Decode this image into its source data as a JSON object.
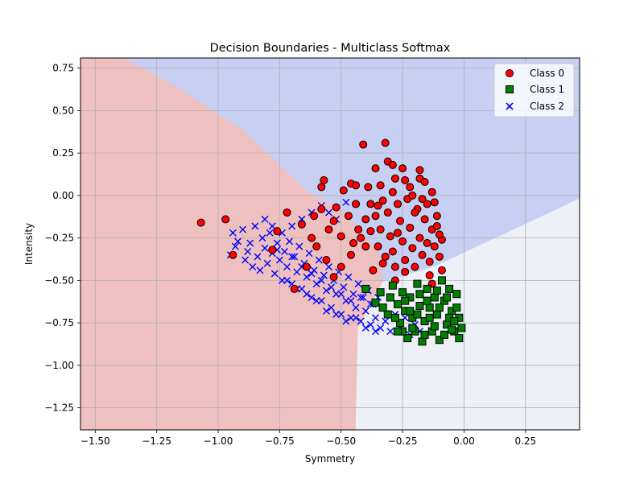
{
  "chart_data": {
    "type": "scatter",
    "title": "Decision Boundaries - Multiclass Softmax",
    "xlabel": "Symmetry",
    "ylabel": "Intensity",
    "xlim": [
      -1.56,
      0.47
    ],
    "ylim": [
      -1.38,
      0.81
    ],
    "x_ticks": [
      -1.5,
      -1.25,
      -1.0,
      -0.75,
      -0.5,
      -0.25,
      0.0,
      0.25
    ],
    "x_tick_labels": [
      "−1.50",
      "−1.25",
      "−1.00",
      "−0.75",
      "−0.50",
      "−0.25",
      "0.00",
      "0.25"
    ],
    "y_ticks": [
      0.75,
      0.5,
      0.25,
      0.0,
      -0.25,
      -0.5,
      -0.75,
      -1.0,
      -1.25
    ],
    "y_tick_labels": [
      "0.75",
      "0.50",
      "0.25",
      "0.00",
      "−0.25",
      "−0.50",
      "−0.75",
      "−1.00",
      "−1.25"
    ],
    "grid": true,
    "legend_position": "top-right",
    "decision_regions": [
      {
        "class": "Class 0",
        "color": "#eec1c0",
        "polygon": [
          [
            -1.56,
            0.81
          ],
          [
            -1.38,
            0.81
          ],
          [
            -1.2,
            0.67
          ],
          [
            -0.9,
            0.39
          ],
          [
            -0.63,
            0.02
          ],
          [
            -0.48,
            -0.1
          ],
          [
            -0.34,
            -0.35
          ],
          [
            -0.33,
            -0.51
          ],
          [
            -0.43,
            -0.78
          ],
          [
            -0.44,
            -1.38
          ],
          [
            -1.56,
            -1.38
          ]
        ]
      },
      {
        "class": "Class 2",
        "color": "#c7cff2",
        "polygon": [
          [
            -1.38,
            0.81
          ],
          [
            0.47,
            0.81
          ],
          [
            0.47,
            -0.02
          ],
          [
            -0.12,
            -0.42
          ],
          [
            -0.33,
            -0.51
          ],
          [
            -0.34,
            -0.35
          ],
          [
            -0.48,
            -0.1
          ],
          [
            -0.63,
            0.02
          ],
          [
            -0.9,
            0.39
          ],
          [
            -1.2,
            0.67
          ]
        ]
      },
      {
        "class": "Class 1",
        "color": "#eef0f8",
        "polygon": [
          [
            0.47,
            -0.02
          ],
          [
            0.47,
            -1.38
          ],
          [
            -0.44,
            -1.38
          ],
          [
            -0.43,
            -0.78
          ],
          [
            -0.33,
            -0.51
          ],
          [
            -0.12,
            -0.42
          ]
        ]
      }
    ],
    "series": [
      {
        "name": "Class 0",
        "marker": "circle",
        "color": "#ff0000",
        "edge_color": "#000000",
        "points": [
          [
            -1.07,
            -0.16
          ],
          [
            -0.97,
            -0.14
          ],
          [
            -0.94,
            -0.35
          ],
          [
            -0.72,
            -0.1
          ],
          [
            -0.69,
            -0.55
          ],
          [
            -0.62,
            -0.25
          ],
          [
            -0.58,
            0.05
          ],
          [
            -0.57,
            0.09
          ],
          [
            -0.53,
            -0.48
          ],
          [
            -0.49,
            0.03
          ],
          [
            -0.46,
            0.07
          ],
          [
            -0.44,
            0.06
          ],
          [
            -0.41,
            0.3
          ],
          [
            -0.39,
            0.05
          ],
          [
            -0.36,
            0.16
          ],
          [
            -0.35,
            -0.06
          ],
          [
            -0.34,
            0.06
          ],
          [
            -0.32,
            0.31
          ],
          [
            -0.31,
            0.2
          ],
          [
            -0.29,
            0.18
          ],
          [
            -0.28,
            0.1
          ],
          [
            -0.25,
            0.16
          ],
          [
            -0.24,
            0.09
          ],
          [
            -0.22,
            0.05
          ],
          [
            -0.18,
            0.15
          ],
          [
            -0.18,
            0.1
          ],
          [
            -0.16,
            0.08
          ],
          [
            -0.13,
            0.02
          ],
          [
            -0.12,
            -0.04
          ],
          [
            -0.11,
            -0.12
          ],
          [
            -0.09,
            -0.26
          ],
          [
            -0.1,
            -0.23
          ],
          [
            -0.1,
            -0.36
          ],
          [
            -0.09,
            -0.44
          ],
          [
            -0.14,
            -0.47
          ],
          [
            -0.13,
            -0.52
          ],
          [
            -0.24,
            -0.45
          ],
          [
            -0.28,
            -0.5
          ],
          [
            -0.37,
            -0.44
          ],
          [
            -0.46,
            -0.35
          ],
          [
            -0.5,
            -0.24
          ],
          [
            -0.53,
            -0.15
          ],
          [
            -0.58,
            -0.08
          ],
          [
            -0.61,
            -0.12
          ],
          [
            -0.66,
            -0.17
          ],
          [
            -0.76,
            -0.21
          ],
          [
            -0.78,
            -0.32
          ],
          [
            -0.52,
            -0.07
          ],
          [
            -0.44,
            -0.05
          ],
          [
            -0.47,
            -0.12
          ],
          [
            -0.43,
            -0.2
          ],
          [
            -0.4,
            -0.14
          ],
          [
            -0.38,
            -0.05
          ],
          [
            -0.36,
            -0.12
          ],
          [
            -0.34,
            -0.2
          ],
          [
            -0.33,
            -0.03
          ],
          [
            -0.31,
            -0.1
          ],
          [
            -0.3,
            -0.24
          ],
          [
            -0.29,
            -0.33
          ],
          [
            -0.27,
            -0.05
          ],
          [
            -0.26,
            -0.15
          ],
          [
            -0.25,
            -0.27
          ],
          [
            -0.24,
            -0.38
          ],
          [
            -0.23,
            -0.02
          ],
          [
            -0.22,
            -0.19
          ],
          [
            -0.21,
            -0.31
          ],
          [
            -0.2,
            -0.42
          ],
          [
            -0.19,
            -0.08
          ],
          [
            -0.18,
            -0.25
          ],
          [
            -0.17,
            -0.35
          ],
          [
            -0.16,
            -0.14
          ],
          [
            -0.15,
            -0.28
          ],
          [
            -0.14,
            -0.39
          ],
          [
            -0.13,
            -0.2
          ],
          [
            -0.12,
            -0.3
          ],
          [
            -0.35,
            -0.3
          ],
          [
            -0.33,
            -0.4
          ],
          [
            -0.4,
            -0.3
          ],
          [
            -0.42,
            -0.25
          ],
          [
            -0.38,
            -0.21
          ],
          [
            -0.28,
            -0.42
          ],
          [
            -0.32,
            -0.36
          ],
          [
            -0.27,
            -0.22
          ],
          [
            -0.2,
            -0.1
          ],
          [
            -0.15,
            -0.05
          ],
          [
            -0.29,
            0.02
          ],
          [
            -0.21,
            0.0
          ],
          [
            -0.17,
            -0.02
          ],
          [
            -0.11,
            -0.18
          ],
          [
            -0.45,
            -0.28
          ],
          [
            -0.55,
            -0.2
          ],
          [
            -0.6,
            -0.3
          ],
          [
            -0.64,
            -0.42
          ],
          [
            -0.56,
            -0.38
          ],
          [
            -0.5,
            -0.42
          ]
        ]
      },
      {
        "name": "Class 1",
        "marker": "square",
        "color": "#008000",
        "edge_color": "#000000",
        "points": [
          [
            -0.4,
            -0.55
          ],
          [
            -0.36,
            -0.63
          ],
          [
            -0.34,
            -0.57
          ],
          [
            -0.31,
            -0.7
          ],
          [
            -0.29,
            -0.53
          ],
          [
            -0.27,
            -0.64
          ],
          [
            -0.26,
            -0.75
          ],
          [
            -0.25,
            -0.57
          ],
          [
            -0.24,
            -0.68
          ],
          [
            -0.23,
            -0.84
          ],
          [
            -0.22,
            -0.6
          ],
          [
            -0.21,
            -0.72
          ],
          [
            -0.2,
            -0.8
          ],
          [
            -0.19,
            -0.52
          ],
          [
            -0.18,
            -0.65
          ],
          [
            -0.17,
            -0.86
          ],
          [
            -0.16,
            -0.74
          ],
          [
            -0.15,
            -0.55
          ],
          [
            -0.14,
            -0.66
          ],
          [
            -0.13,
            -0.8
          ],
          [
            -0.12,
            -0.6
          ],
          [
            -0.11,
            -0.7
          ],
          [
            -0.1,
            -0.85
          ],
          [
            -0.09,
            -0.5
          ],
          [
            -0.08,
            -0.62
          ],
          [
            -0.07,
            -0.76
          ],
          [
            -0.06,
            -0.55
          ],
          [
            -0.05,
            -0.68
          ],
          [
            -0.04,
            -0.8
          ],
          [
            -0.03,
            -0.58
          ],
          [
            -0.02,
            -0.72
          ],
          [
            -0.01,
            -0.78
          ],
          [
            -0.02,
            -0.84
          ],
          [
            -0.05,
            -0.79
          ],
          [
            -0.08,
            -0.82
          ],
          [
            -0.12,
            -0.77
          ],
          [
            -0.16,
            -0.82
          ],
          [
            -0.21,
            -0.78
          ],
          [
            -0.25,
            -0.8
          ],
          [
            -0.3,
            -0.6
          ],
          [
            -0.33,
            -0.66
          ],
          [
            -0.28,
            -0.72
          ],
          [
            -0.22,
            -0.68
          ],
          [
            -0.18,
            -0.58
          ],
          [
            -0.14,
            -0.72
          ],
          [
            -0.1,
            -0.66
          ],
          [
            -0.06,
            -0.72
          ],
          [
            -0.03,
            -0.66
          ],
          [
            -0.07,
            -0.6
          ],
          [
            -0.11,
            -0.56
          ],
          [
            -0.15,
            -0.62
          ],
          [
            -0.19,
            -0.7
          ],
          [
            -0.24,
            -0.62
          ],
          [
            -0.27,
            -0.8
          ],
          [
            -0.04,
            -0.74
          ]
        ]
      },
      {
        "name": "Class 2",
        "marker": "x",
        "color": "#0000ff",
        "points": [
          [
            -0.95,
            -0.35
          ],
          [
            -0.94,
            -0.22
          ],
          [
            -0.93,
            -0.3
          ],
          [
            -0.92,
            -0.27
          ],
          [
            -0.9,
            -0.2
          ],
          [
            -0.89,
            -0.38
          ],
          [
            -0.88,
            -0.33
          ],
          [
            -0.87,
            -0.28
          ],
          [
            -0.86,
            -0.42
          ],
          [
            -0.85,
            -0.18
          ],
          [
            -0.84,
            -0.36
          ],
          [
            -0.83,
            -0.44
          ],
          [
            -0.82,
            -0.25
          ],
          [
            -0.81,
            -0.31
          ],
          [
            -0.8,
            -0.4
          ],
          [
            -0.79,
            -0.22
          ],
          [
            -0.78,
            -0.34
          ],
          [
            -0.77,
            -0.46
          ],
          [
            -0.76,
            -0.28
          ],
          [
            -0.75,
            -0.38
          ],
          [
            -0.74,
            -0.5
          ],
          [
            -0.73,
            -0.33
          ],
          [
            -0.72,
            -0.42
          ],
          [
            -0.71,
            -0.27
          ],
          [
            -0.7,
            -0.52
          ],
          [
            -0.69,
            -0.36
          ],
          [
            -0.68,
            -0.45
          ],
          [
            -0.67,
            -0.3
          ],
          [
            -0.66,
            -0.55
          ],
          [
            -0.65,
            -0.4
          ],
          [
            -0.64,
            -0.48
          ],
          [
            -0.63,
            -0.34
          ],
          [
            -0.62,
            -0.6
          ],
          [
            -0.61,
            -0.44
          ],
          [
            -0.6,
            -0.52
          ],
          [
            -0.59,
            -0.38
          ],
          [
            -0.58,
            -0.62
          ],
          [
            -0.57,
            -0.47
          ],
          [
            -0.56,
            -0.56
          ],
          [
            -0.55,
            -0.42
          ],
          [
            -0.54,
            -0.66
          ],
          [
            -0.53,
            -0.5
          ],
          [
            -0.52,
            -0.58
          ],
          [
            -0.51,
            -0.45
          ],
          [
            -0.5,
            -0.7
          ],
          [
            -0.49,
            -0.54
          ],
          [
            -0.48,
            -0.62
          ],
          [
            -0.47,
            -0.48
          ],
          [
            -0.46,
            -0.72
          ],
          [
            -0.45,
            -0.58
          ],
          [
            -0.44,
            -0.66
          ],
          [
            -0.43,
            -0.52
          ],
          [
            -0.42,
            -0.74
          ],
          [
            -0.41,
            -0.6
          ],
          [
            -0.4,
            -0.68
          ],
          [
            -0.39,
            -0.56
          ],
          [
            -0.38,
            -0.76
          ],
          [
            -0.37,
            -0.64
          ],
          [
            -0.36,
            -0.72
          ],
          [
            -0.35,
            -0.6
          ],
          [
            -0.34,
            -0.78
          ],
          [
            -0.33,
            -0.66
          ],
          [
            -0.32,
            -0.74
          ],
          [
            -0.3,
            -0.8
          ],
          [
            -0.28,
            -0.7
          ],
          [
            -0.26,
            -0.78
          ],
          [
            -0.24,
            -0.72
          ],
          [
            -0.22,
            -0.82
          ],
          [
            -0.2,
            -0.76
          ],
          [
            -0.18,
            -0.8
          ],
          [
            -0.81,
            -0.14
          ],
          [
            -0.78,
            -0.18
          ],
          [
            -0.74,
            -0.22
          ],
          [
            -0.7,
            -0.18
          ],
          [
            -0.66,
            -0.14
          ],
          [
            -0.62,
            -0.1
          ],
          [
            -0.58,
            -0.06
          ],
          [
            -0.55,
            -0.1
          ],
          [
            -0.52,
            -0.14
          ],
          [
            -0.48,
            -0.04
          ],
          [
            -0.72,
            -0.5
          ],
          [
            -0.68,
            -0.55
          ],
          [
            -0.64,
            -0.58
          ],
          [
            -0.6,
            -0.62
          ],
          [
            -0.56,
            -0.68
          ],
          [
            -0.52,
            -0.7
          ],
          [
            -0.48,
            -0.74
          ],
          [
            -0.44,
            -0.72
          ],
          [
            -0.4,
            -0.78
          ],
          [
            -0.36,
            -0.8
          ],
          [
            -0.76,
            -0.32
          ],
          [
            -0.7,
            -0.36
          ],
          [
            -0.66,
            -0.42
          ],
          [
            -0.62,
            -0.46
          ],
          [
            -0.58,
            -0.5
          ],
          [
            -0.54,
            -0.54
          ],
          [
            -0.5,
            -0.58
          ],
          [
            -0.46,
            -0.62
          ],
          [
            -0.42,
            -0.6
          ],
          [
            -0.38,
            -0.64
          ]
        ]
      }
    ]
  }
}
